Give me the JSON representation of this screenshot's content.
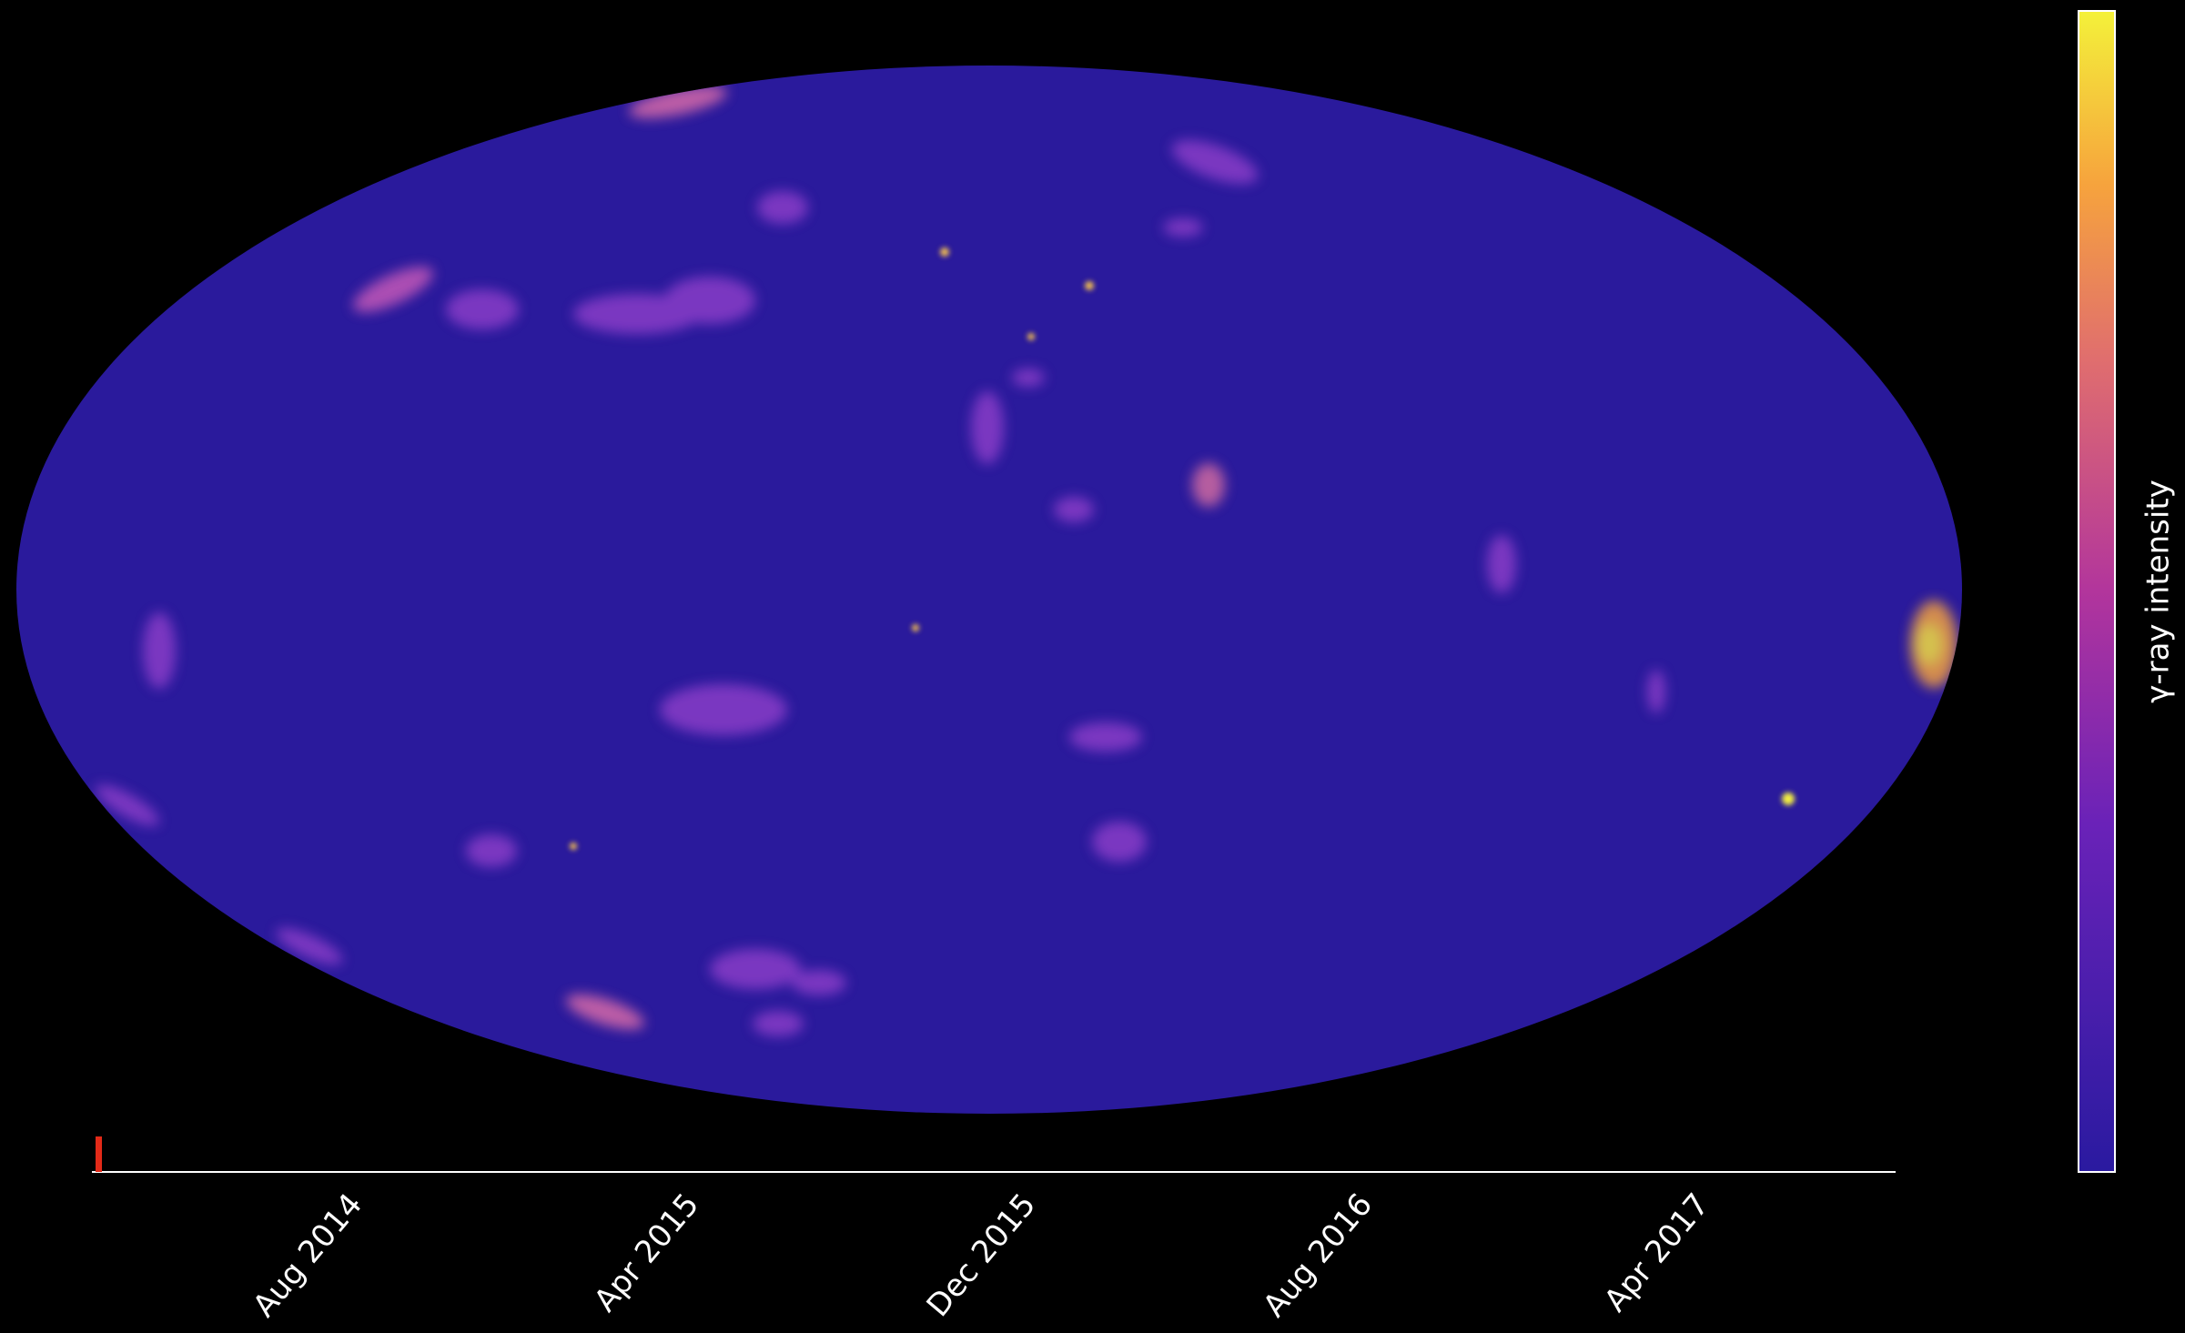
{
  "colorbar": {
    "label": "γ-ray intensity"
  },
  "timeline": {
    "ticks": [
      "Aug 2014",
      "Apr 2015",
      "Dec 2015",
      "Aug 2016",
      "Apr 2017"
    ]
  }
}
